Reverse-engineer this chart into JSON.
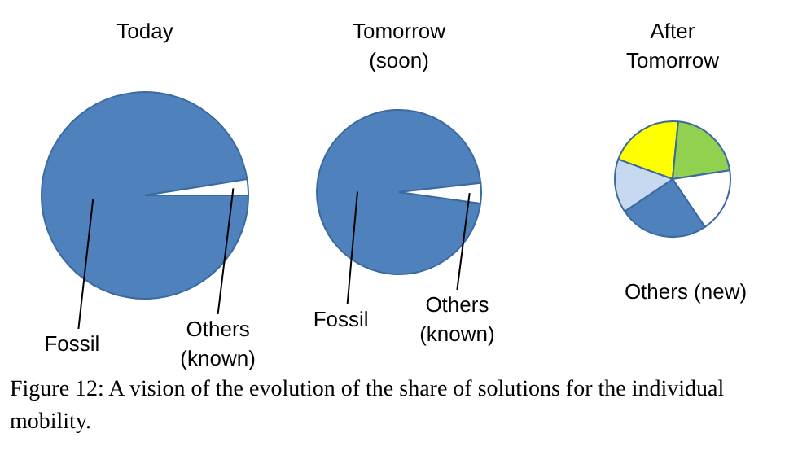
{
  "chart_data": [
    {
      "type": "pie",
      "title": "Today",
      "categories": [
        "Fossil",
        "Others (known)"
      ],
      "values": [
        97.5,
        2.5
      ],
      "colors": [
        "#4f81bd",
        "#ffffff"
      ],
      "legend": false,
      "annotations": [
        "Figure 12: A vision of the evolution of the share of solutions for the individual mobility."
      ]
    },
    {
      "type": "pie",
      "title": "Tomorrow\n(soon)",
      "categories": [
        "Fossil",
        "Others (known)"
      ],
      "values": [
        96,
        4
      ],
      "colors": [
        "#4f81bd",
        "#ffffff"
      ],
      "legend": false
    },
    {
      "type": "pie",
      "title": "After\nTomorrow",
      "categories": [
        null,
        null,
        null,
        null,
        null
      ],
      "values": [
        21,
        21,
        18,
        25,
        15
      ],
      "colors": [
        "#ffff00",
        "#92d050",
        "#ffffff",
        "#4f81bd",
        "#c6d9f1"
      ],
      "legend": false,
      "annotations": [
        "Others (new)"
      ]
    }
  ]
}
